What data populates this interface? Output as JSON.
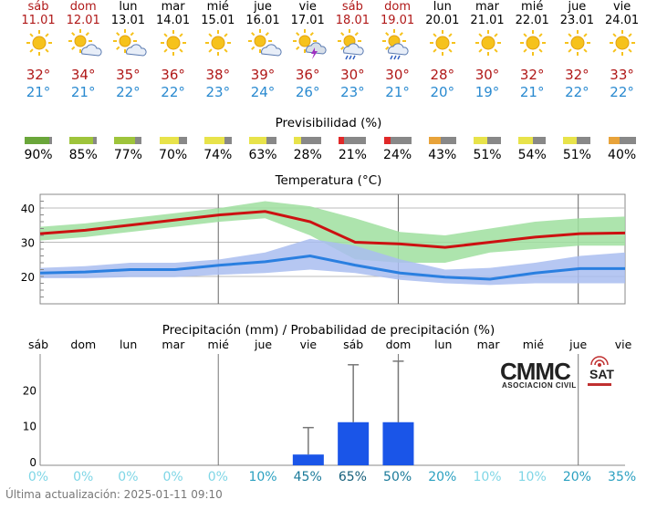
{
  "days": [
    {
      "name": "sáb",
      "date": "11.01",
      "icon": "sun-icon",
      "tmax": "32°",
      "tmin": "21°",
      "weekend": true
    },
    {
      "name": "dom",
      "date": "12.01",
      "icon": "sun-cloud-icon",
      "tmax": "34°",
      "tmin": "21°",
      "weekend": true
    },
    {
      "name": "lun",
      "date": "13.01",
      "icon": "sun-cloud-icon",
      "tmax": "35°",
      "tmin": "22°",
      "weekend": false
    },
    {
      "name": "mar",
      "date": "14.01",
      "icon": "sun-icon",
      "tmax": "36°",
      "tmin": "22°",
      "weekend": false
    },
    {
      "name": "mié",
      "date": "15.01",
      "icon": "sun-icon",
      "tmax": "38°",
      "tmin": "23°",
      "weekend": false
    },
    {
      "name": "jue",
      "date": "16.01",
      "icon": "sun-cloud-icon",
      "tmax": "39°",
      "tmin": "24°",
      "weekend": false
    },
    {
      "name": "vie",
      "date": "17.01",
      "icon": "thunderstorm-icon",
      "tmax": "36°",
      "tmin": "26°",
      "weekend": false
    },
    {
      "name": "sáb",
      "date": "18.01",
      "icon": "sun-rain-icon",
      "tmax": "30°",
      "tmin": "23°",
      "weekend": true
    },
    {
      "name": "dom",
      "date": "19.01",
      "icon": "sun-rain-icon",
      "tmax": "30°",
      "tmin": "21°",
      "weekend": true
    },
    {
      "name": "lun",
      "date": "20.01",
      "icon": "sun-icon",
      "tmax": "28°",
      "tmin": "20°",
      "weekend": false
    },
    {
      "name": "mar",
      "date": "21.01",
      "icon": "sun-icon",
      "tmax": "30°",
      "tmin": "19°",
      "weekend": false
    },
    {
      "name": "mié",
      "date": "22.01",
      "icon": "sun-icon",
      "tmax": "32°",
      "tmin": "21°",
      "weekend": false
    },
    {
      "name": "jue",
      "date": "23.01",
      "icon": "sun-icon",
      "tmax": "32°",
      "tmin": "22°",
      "weekend": false
    },
    {
      "name": "vie",
      "date": "24.01",
      "icon": "sun-icon",
      "tmax": "33°",
      "tmin": "22°",
      "weekend": false
    }
  ],
  "predictability": {
    "title": "Previsibilidad (%)",
    "values": [
      "90%",
      "85%",
      "77%",
      "70%",
      "74%",
      "63%",
      "28%",
      "21%",
      "24%",
      "43%",
      "51%",
      "54%",
      "51%",
      "40%"
    ],
    "fractions": [
      0.9,
      0.85,
      0.77,
      0.7,
      0.74,
      0.63,
      0.28,
      0.21,
      0.24,
      0.43,
      0.51,
      0.54,
      0.51,
      0.4
    ],
    "colors": [
      "#6aa63a",
      "#9ec43b",
      "#9ec43b",
      "#e8e34a",
      "#e8e34a",
      "#e8e34a",
      "#e8e34a",
      "#e02828",
      "#e02828",
      "#e8a33a",
      "#e8e34a",
      "#e8e34a",
      "#e8e34a",
      "#e8a33a"
    ]
  },
  "chart_data": [
    {
      "type": "line",
      "title": "Temperatura (°C)",
      "ylim": [
        12,
        44
      ],
      "yticks": [
        "20",
        "30",
        "40"
      ],
      "x": [
        0,
        1,
        2,
        3,
        4,
        5,
        6,
        7,
        8,
        9,
        10,
        11,
        12,
        13
      ],
      "series": [
        {
          "values": [
            32.5,
            33.5,
            35,
            36.5,
            38,
            39,
            36,
            30,
            29.5,
            28.5,
            30,
            31.5,
            32.5,
            32.7
          ],
          "color": "#cc1111",
          "band_low": [
            30.5,
            31.5,
            33,
            34.5,
            36,
            37,
            32,
            25,
            24,
            24,
            27,
            28,
            29,
            29
          ],
          "band_high": [
            34.5,
            35.5,
            37,
            38.5,
            40,
            42,
            40.5,
            37,
            33,
            32,
            34,
            36,
            37,
            37.5
          ],
          "band_color": "#9fdf9f"
        },
        {
          "values": [
            21,
            21.3,
            22,
            22,
            23.3,
            24.3,
            26,
            23.3,
            21,
            19.8,
            19.2,
            21,
            22.3,
            22.3
          ],
          "color": "#2a7fe0",
          "band_low": [
            19.5,
            19.5,
            19.8,
            19.8,
            20.5,
            21,
            22,
            21,
            19,
            18,
            17.5,
            18,
            18,
            18
          ],
          "band_high": [
            22.5,
            23,
            24,
            24,
            25,
            27,
            31,
            29,
            25,
            22,
            22.5,
            24,
            26,
            27
          ],
          "band_color": "#a9bdf0"
        }
      ]
    },
    {
      "type": "bar",
      "title": "Precipitación (mm) / Probabilidad de precipitación (%)",
      "categories": [
        "sáb",
        "dom",
        "lun",
        "mar",
        "mié",
        "jue",
        "vie",
        "sáb",
        "dom",
        "lun",
        "mar",
        "mié",
        "jue",
        "vie"
      ],
      "values": [
        0,
        0,
        0,
        0,
        0,
        0,
        2,
        11,
        11,
        0,
        0,
        0,
        0,
        0
      ],
      "err_high": [
        0,
        0,
        0,
        0,
        0,
        0,
        9.5,
        27,
        28,
        0,
        0,
        0,
        0,
        0
      ],
      "ylim": [
        -1,
        30
      ],
      "yticks": [
        "0",
        "10",
        "20"
      ],
      "probability": [
        "0%",
        "0%",
        "0%",
        "0%",
        "0%",
        "10%",
        "45%",
        "65%",
        "50%",
        "20%",
        "10%",
        "10%",
        "20%",
        "35%"
      ],
      "prob_colors": [
        "#7fd6e6",
        "#7fd6e6",
        "#7fd6e6",
        "#7fd6e6",
        "#7fd6e6",
        "#2aa0c0",
        "#1a7a9a",
        "#155f7a",
        "#1a7a9a",
        "#2aa0c0",
        "#7fd6e6",
        "#7fd6e6",
        "#2aa0c0",
        "#2aa0c0"
      ]
    }
  ],
  "logo": {
    "main": "CMMC",
    "sub": "SAT",
    "caption": "ASOCIACION CIVIL"
  },
  "footer": "Última actualización: 2025-01-11 09:10"
}
